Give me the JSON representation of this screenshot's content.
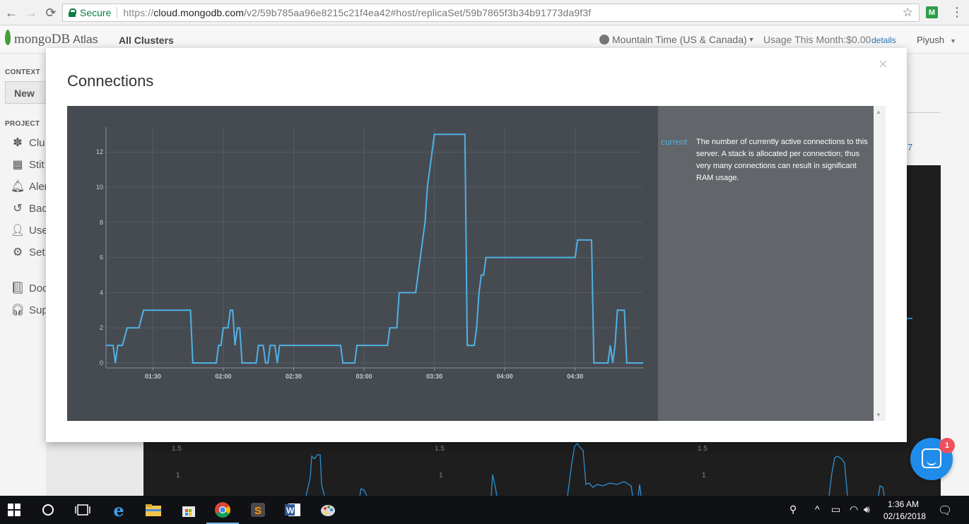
{
  "browser": {
    "secure_label": "Secure",
    "url_scheme": "https://",
    "url_host": "cloud.mongodb.com",
    "url_path": "/v2/59b785aa96e8215c21f4ea42#host/replicaSet/59b7865f3b34b91773da9f3f"
  },
  "header": {
    "brand": "mongoDB",
    "brand_suffix": "Atlas",
    "all_clusters": "All Clusters",
    "timezone": "Mountain Time (US & Canada)",
    "usage": "Usage This Month:$0.00",
    "details_link": "details",
    "user": "Piyush"
  },
  "sidebar": {
    "context_label": "CONTEXT",
    "context_value": "New",
    "project_label": "PROJECT",
    "items": [
      {
        "label": "Clu",
        "icon": "clusters-icon"
      },
      {
        "label": "Stit",
        "icon": "stitch-icon"
      },
      {
        "label": "Aler",
        "icon": "bell-icon"
      },
      {
        "label": "Bac",
        "icon": "backup-icon"
      },
      {
        "label": "Use",
        "icon": "user-icon"
      },
      {
        "label": "Set",
        "icon": "gear-icon"
      },
      {
        "label": "Doc",
        "icon": "book-icon"
      },
      {
        "label": "Sup",
        "icon": "headset-icon"
      }
    ]
  },
  "page_right": {
    "link_fragment": "7"
  },
  "underlying_charts": {
    "tick_labels": [
      "1.5",
      "1",
      "1.5",
      "1",
      "1.5",
      "1"
    ]
  },
  "modal": {
    "title": "Connections",
    "close_icon": "close-icon",
    "legend_key": "current",
    "legend_description": "The number of currently active connections to this server. A stack is allocated per connection; thus very many connections can result in significant RAM usage."
  },
  "chart_data": {
    "type": "line",
    "title": "Connections",
    "xlabel": "",
    "ylabel": "",
    "y_ticks": [
      0,
      2,
      4,
      6,
      8,
      10,
      12
    ],
    "ylim": [
      0,
      13.5
    ],
    "x_ticks": [
      "01:30",
      "02:00",
      "02:30",
      "03:00",
      "03:30",
      "04:00",
      "04:30"
    ],
    "x_range_minutes": [
      "01:10",
      "04:59"
    ],
    "grid": true,
    "legend": "right panel",
    "series": [
      {
        "name": "current",
        "color": "#4fb2e4",
        "points": [
          [
            "01:10",
            1
          ],
          [
            "01:13",
            1
          ],
          [
            "01:14",
            0
          ],
          [
            "01:15",
            1
          ],
          [
            "01:17",
            1
          ],
          [
            "01:19",
            2
          ],
          [
            "01:24",
            2
          ],
          [
            "01:26",
            3
          ],
          [
            "01:37",
            3
          ],
          [
            "01:46",
            3
          ],
          [
            "01:47",
            0
          ],
          [
            "01:57",
            0
          ],
          [
            "01:58",
            1
          ],
          [
            "01:59",
            1
          ],
          [
            "02:00",
            2
          ],
          [
            "02:02",
            2
          ],
          [
            "02:03",
            3
          ],
          [
            "02:04",
            3
          ],
          [
            "02:05",
            1
          ],
          [
            "02:06",
            2
          ],
          [
            "02:07",
            2
          ],
          [
            "02:08",
            0
          ],
          [
            "02:14",
            0
          ],
          [
            "02:15",
            1
          ],
          [
            "02:17",
            1
          ],
          [
            "02:18",
            0
          ],
          [
            "02:19",
            0
          ],
          [
            "02:20",
            1
          ],
          [
            "02:22",
            1
          ],
          [
            "02:23",
            0
          ],
          [
            "02:24",
            1
          ],
          [
            "02:40",
            1
          ],
          [
            "02:50",
            1
          ],
          [
            "02:51",
            0
          ],
          [
            "02:56",
            0
          ],
          [
            "02:57",
            1
          ],
          [
            "03:10",
            1
          ],
          [
            "03:11",
            2
          ],
          [
            "03:14",
            2
          ],
          [
            "03:15",
            4
          ],
          [
            "03:22",
            4
          ],
          [
            "03:25",
            7
          ],
          [
            "03:26",
            8
          ],
          [
            "03:27",
            10
          ],
          [
            "03:28",
            11
          ],
          [
            "03:29",
            12
          ],
          [
            "03:30",
            13
          ],
          [
            "03:43",
            13
          ],
          [
            "03:44",
            1
          ],
          [
            "03:47",
            1
          ],
          [
            "03:48",
            2
          ],
          [
            "03:49",
            4
          ],
          [
            "03:50",
            5
          ],
          [
            "03:51",
            5
          ],
          [
            "03:52",
            6
          ],
          [
            "04:00",
            6
          ],
          [
            "04:30",
            6
          ],
          [
            "04:31",
            7
          ],
          [
            "04:37",
            7
          ],
          [
            "04:38",
            0
          ],
          [
            "04:44",
            0
          ],
          [
            "04:45",
            1
          ],
          [
            "04:46",
            0
          ],
          [
            "04:47",
            1
          ],
          [
            "04:48",
            3
          ],
          [
            "04:51",
            3
          ],
          [
            "04:52",
            0
          ],
          [
            "04:59",
            0
          ]
        ]
      }
    ]
  },
  "taskbar": {
    "icons": [
      "windows-start-icon",
      "cortana-icon",
      "task-view-icon",
      "edge-icon",
      "file-explorer-icon",
      "store-icon",
      "chrome-icon",
      "sublime-icon",
      "word-icon",
      "paint-icon"
    ],
    "time": "1:36 AM",
    "date": "02/16/2018"
  },
  "intercom": {
    "badge": "1"
  }
}
